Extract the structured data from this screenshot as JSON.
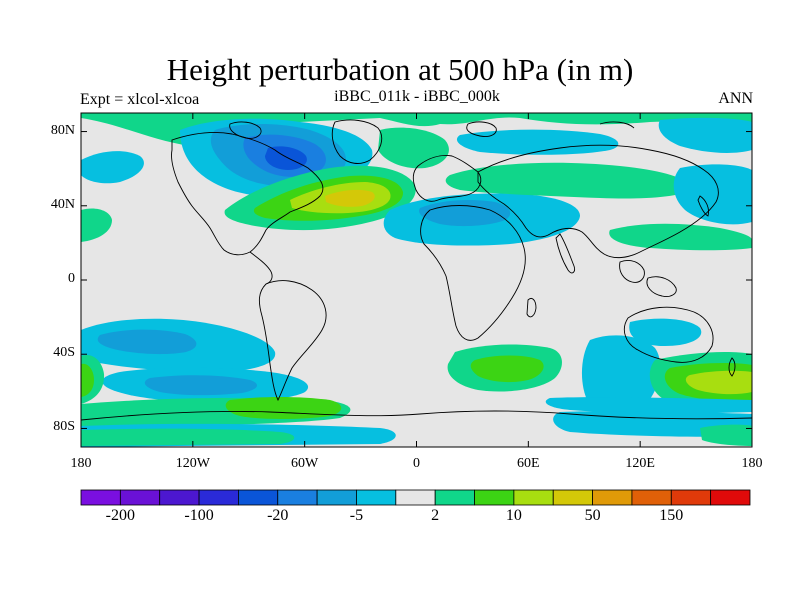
{
  "title": "Height perturbation at 500 hPa (in m)",
  "subtitle_left": "Expt = xlcol-xlcoa",
  "subtitle_center": "iBBC_011k - iBBC_000k",
  "subtitle_right": "ANN",
  "map": {
    "projection": "cylindrical equidistant",
    "lon_range": [
      -180,
      180
    ],
    "lat_range": [
      -90,
      90
    ],
    "background": "#e6e6e6",
    "lat_ticks": [
      {
        "value": 80,
        "label": "80N"
      },
      {
        "value": 40,
        "label": "40N"
      },
      {
        "value": 0,
        "label": "0"
      },
      {
        "value": -40,
        "label": "40S"
      },
      {
        "value": -80,
        "label": "80S"
      }
    ],
    "lon_ticks": [
      {
        "value": -180,
        "label": "180"
      },
      {
        "value": -120,
        "label": "120W"
      },
      {
        "value": -60,
        "label": "60W"
      },
      {
        "value": 0,
        "label": "0"
      },
      {
        "value": 60,
        "label": "60E"
      },
      {
        "value": 120,
        "label": "120E"
      },
      {
        "value": 180,
        "label": "180"
      }
    ]
  },
  "colorbar": {
    "colors": [
      "#7a0fe0",
      "#6a11d6",
      "#4c17d0",
      "#2a2ad8",
      "#0a55d8",
      "#1a7fe0",
      "#129ed8",
      "#06bfe0",
      "#e6e6e6",
      "#10d68a",
      "#3cd414",
      "#a8de10",
      "#d4c808",
      "#e09a08",
      "#e06008",
      "#e03a0a",
      "#e00a0a"
    ],
    "labels": [
      {
        "index": 1,
        "text": "-200"
      },
      {
        "index": 3,
        "text": "-100"
      },
      {
        "index": 5,
        "text": "-20"
      },
      {
        "index": 7,
        "text": "-5"
      },
      {
        "index": 9,
        "text": "2"
      },
      {
        "index": 11,
        "text": "10"
      },
      {
        "index": 13,
        "text": "50"
      },
      {
        "index": 15,
        "text": "150"
      }
    ]
  }
}
